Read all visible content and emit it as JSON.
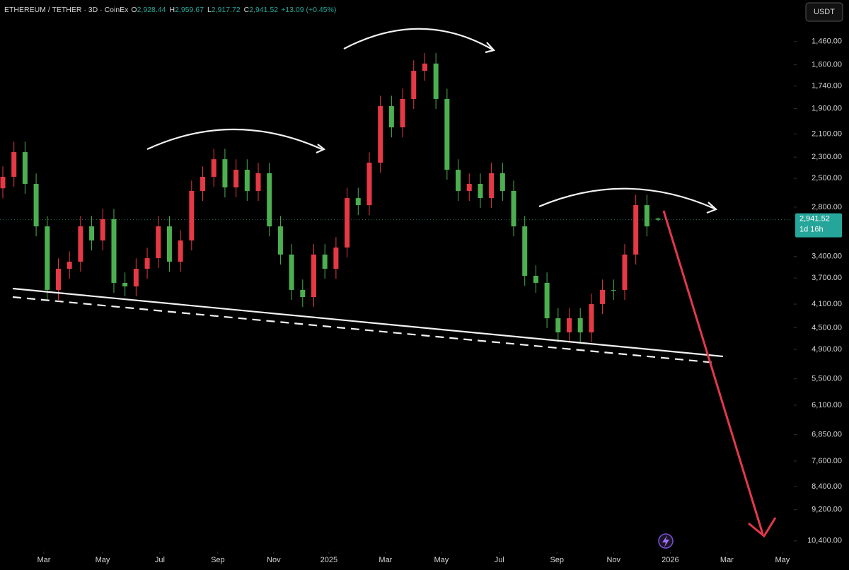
{
  "chart_data": {
    "type": "candlestick",
    "header": {
      "symbol": "ETHEREUM / TETHER · 3D · CoinEx",
      "ohlc": [
        {
          "key": "O",
          "value": "2,928.44"
        },
        {
          "key": "H",
          "value": "2,959.67"
        },
        {
          "key": "L",
          "value": "2,917.72"
        },
        {
          "key": "C",
          "value": "2,941.52"
        }
      ],
      "change": "+13.09 (+0.45%)"
    },
    "currency_button": "USDT",
    "up_color": "#26a69a",
    "down_color": "#ef5350",
    "up_fill": "#4caf50",
    "down_fill": "#e53945",
    "open": [
      2600,
      2485,
      2255,
      2555,
      3020,
      3877,
      3568,
      3470,
      3020,
      3192,
      2936,
      3771,
      3824,
      3568,
      3422,
      3020,
      3470,
      3192,
      2627,
      2485,
      2319,
      2591,
      2417,
      2627,
      2450,
      3020,
      3374,
      3877,
      3987,
      3374,
      3568,
      3282,
      2702,
      2778,
      2351,
      1882,
      2046,
      1830,
      1638,
      1592,
      1830,
      2417,
      2627,
      2555,
      2702,
      2450,
      2627,
      3020,
      3668,
      3771,
      4334,
      4582,
      4334,
      4582,
      4099,
      3877,
      3877,
      3374,
      2778,
      2928.44
    ],
    "high": [
      2704,
      2584,
      2657,
      3141,
      4032,
      4032,
      3711,
      3609,
      3320,
      3320,
      3922,
      3977,
      3977,
      3711,
      3559,
      3609,
      3609,
      3320,
      2732,
      2584,
      2695,
      2695,
      2732,
      2732,
      3141,
      3509,
      4032,
      4146,
      4146,
      3711,
      3711,
      3413,
      2889,
      2889,
      2445,
      2128,
      2128,
      1903,
      1704,
      1903,
      2514,
      2732,
      2732,
      2810,
      2810,
      2732,
      3141,
      3815,
      3922,
      4507,
      4765,
      4765,
      4765,
      4765,
      4263,
      4032,
      4032,
      3509,
      3141,
      2959.67
    ],
    "low": [
      2386,
      2165,
      2165,
      2453,
      2899,
      3425,
      3331,
      2899,
      2899,
      2819,
      2819,
      3620,
      3425,
      3285,
      2899,
      2899,
      3064,
      2522,
      2386,
      2226,
      2226,
      2320,
      2320,
      2352,
      2352,
      2899,
      3239,
      3722,
      3239,
      3239,
      3151,
      2594,
      2594,
      2257,
      1807,
      1807,
      1757,
      1572,
      1528,
      1528,
      1757,
      2320,
      2453,
      2453,
      2352,
      2352,
      2522,
      2899,
      3521,
      3620,
      4161,
      4161,
      4161,
      3935,
      3722,
      3722,
      3239,
      2667,
      2667,
      2917.72
    ],
    "close": [
      2485,
      2255,
      2555,
      3020,
      3877,
      3568,
      3470,
      3020,
      3192,
      2936,
      3771,
      3824,
      3568,
      3422,
      3020,
      3470,
      3192,
      2627,
      2485,
      2319,
      2591,
      2417,
      2627,
      2450,
      3020,
      3374,
      3877,
      3987,
      3374,
      3568,
      3282,
      2702,
      2778,
      2351,
      1882,
      2046,
      1830,
      1638,
      1592,
      1830,
      2417,
      2627,
      2555,
      2702,
      2450,
      2627,
      3020,
      3668,
      3771,
      4334,
      4582,
      4334,
      4582,
      4099,
      3877,
      3877,
      3374,
      2778,
      3020,
      2941.52
    ],
    "log_scale": true,
    "reversed": true,
    "ylim": [
      1240,
      10850
    ],
    "yticks": [
      {
        "value": 1460,
        "label": "1,460.00"
      },
      {
        "value": 1600,
        "label": "1,600.00"
      },
      {
        "value": 1740,
        "label": "1,740.00"
      },
      {
        "value": 1900,
        "label": "1,900.00"
      },
      {
        "value": 2100,
        "label": "2,100.00"
      },
      {
        "value": 2300,
        "label": "2,300.00"
      },
      {
        "value": 2500,
        "label": "2,500.00"
      },
      {
        "value": 2800,
        "label": "2,800.00"
      },
      {
        "value": 3400,
        "label": "3,400.00"
      },
      {
        "value": 3700,
        "label": "3,700.00"
      },
      {
        "value": 4100,
        "label": "4,100.00"
      },
      {
        "value": 4500,
        "label": "4,500.00"
      },
      {
        "value": 4900,
        "label": "4,900.00"
      },
      {
        "value": 5500,
        "label": "5,500.00"
      },
      {
        "value": 6100,
        "label": "6,100.00"
      },
      {
        "value": 6850,
        "label": "6,850.00"
      },
      {
        "value": 7600,
        "label": "7,600.00"
      },
      {
        "value": 8400,
        "label": "8,400.00"
      },
      {
        "value": 9200,
        "label": "9,200.00"
      },
      {
        "value": 10400,
        "label": "10,400.00"
      }
    ],
    "xlim": [
      -0.255,
      71.1
    ],
    "xticks": [
      {
        "value": 3.69,
        "label": "Mar"
      },
      {
        "value": 8.98,
        "label": "May"
      },
      {
        "value": 14.14,
        "label": "Jul"
      },
      {
        "value": 19.36,
        "label": "Sep"
      },
      {
        "value": 24.39,
        "label": "Nov"
      },
      {
        "value": 29.36,
        "label": "2025"
      },
      {
        "value": 34.46,
        "label": "Mar"
      },
      {
        "value": 39.49,
        "label": "May"
      },
      {
        "value": 44.71,
        "label": "Jul"
      },
      {
        "value": 49.9,
        "label": "Sep"
      },
      {
        "value": 55.0,
        "label": "Nov"
      },
      {
        "value": 60.1,
        "label": "2026"
      },
      {
        "value": 65.2,
        "label": "Mar"
      },
      {
        "value": 70.2,
        "label": "May"
      }
    ],
    "price_tag": {
      "value": 2941.52,
      "label": "2,941.52",
      "countdown": "1d 16h",
      "color": "#26a69a"
    }
  }
}
